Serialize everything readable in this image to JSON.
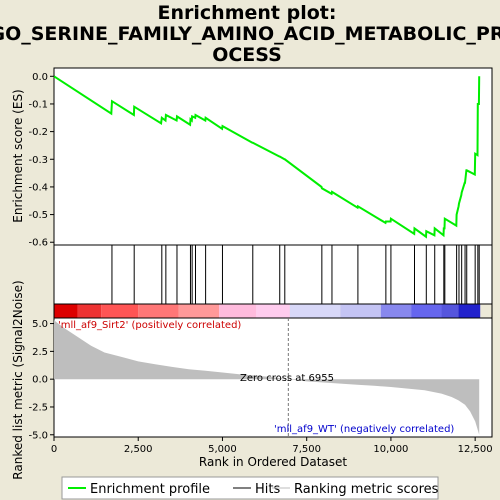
{
  "chart_data": {
    "type": "line",
    "title_lines": [
      "Enrichment plot:",
      "GO_SERINE_FAMILY_AMINO_ACID_METABOLIC_PR",
      "OCESS"
    ],
    "xlabel": "Rank in Ordered Dataset",
    "ylabel_top": "Enrichment score (ES)",
    "ylabel_bottom": "Ranked list metric (Signal2Noise)",
    "xlim": [
      0,
      13000
    ],
    "es_ylim": [
      -0.61,
      0.03
    ],
    "metric_ylim": [
      -5.2,
      5.5
    ],
    "x_ticks": [
      0,
      2500,
      5000,
      7500,
      10000,
      12500
    ],
    "x_tick_labels": [
      "0",
      "2,500",
      "5,000",
      "7,500",
      "10,000",
      "12,500"
    ],
    "es_ticks": [
      0.0,
      -0.1,
      -0.2,
      -0.3,
      -0.4,
      -0.5,
      -0.6
    ],
    "es_tick_labels": [
      "0.0",
      "-0.1",
      "-0.2",
      "-0.3",
      "-0.4",
      "-0.5",
      "-0.6"
    ],
    "metric_ticks": [
      5.0,
      2.5,
      0.0,
      -2.5,
      -5.0
    ],
    "metric_tick_labels": [
      "5.0",
      "2.5",
      "0.0",
      "-2.5",
      "-5.0"
    ],
    "hits": [
      1720,
      2380,
      3200,
      3320,
      3650,
      4050,
      4100,
      4200,
      4500,
      5000,
      5900,
      6700,
      6850,
      7950,
      8250,
      9020,
      9850,
      10000,
      10700,
      11050,
      11300,
      11570,
      11600,
      11950,
      12020,
      12100,
      12200,
      12250,
      12500,
      12580,
      12620
    ],
    "es_curve": [
      [
        0,
        0.0
      ],
      [
        1700,
        -0.135
      ],
      [
        1720,
        -0.09
      ],
      [
        2370,
        -0.14
      ],
      [
        2380,
        -0.11
      ],
      [
        3180,
        -0.17
      ],
      [
        3200,
        -0.15
      ],
      [
        3310,
        -0.16
      ],
      [
        3320,
        -0.14
      ],
      [
        3640,
        -0.16
      ],
      [
        3650,
        -0.145
      ],
      [
        4040,
        -0.175
      ],
      [
        4050,
        -0.155
      ],
      [
        4090,
        -0.16
      ],
      [
        4100,
        -0.145
      ],
      [
        4190,
        -0.15
      ],
      [
        4200,
        -0.14
      ],
      [
        4490,
        -0.16
      ],
      [
        4500,
        -0.15
      ],
      [
        4990,
        -0.19
      ],
      [
        5000,
        -0.18
      ],
      [
        5890,
        -0.24
      ],
      [
        5900,
        -0.24
      ],
      [
        6690,
        -0.29
      ],
      [
        6700,
        -0.29
      ],
      [
        6840,
        -0.3
      ],
      [
        6850,
        -0.3
      ],
      [
        7940,
        -0.4
      ],
      [
        7950,
        -0.405
      ],
      [
        8240,
        -0.425
      ],
      [
        8250,
        -0.418
      ],
      [
        9010,
        -0.475
      ],
      [
        9020,
        -0.47
      ],
      [
        9840,
        -0.53
      ],
      [
        9850,
        -0.525
      ],
      [
        9990,
        -0.525
      ],
      [
        10000,
        -0.515
      ],
      [
        10690,
        -0.57
      ],
      [
        10700,
        -0.55
      ],
      [
        11040,
        -0.58
      ],
      [
        11050,
        -0.56
      ],
      [
        11290,
        -0.575
      ],
      [
        11300,
        -0.55
      ],
      [
        11560,
        -0.575
      ],
      [
        11570,
        -0.55
      ],
      [
        11590,
        -0.55
      ],
      [
        11600,
        -0.515
      ],
      [
        11940,
        -0.54
      ],
      [
        11950,
        -0.5
      ],
      [
        12010,
        -0.47
      ],
      [
        12020,
        -0.46
      ],
      [
        12090,
        -0.43
      ],
      [
        12100,
        -0.42
      ],
      [
        12190,
        -0.385
      ],
      [
        12200,
        -0.385
      ],
      [
        12240,
        -0.34
      ],
      [
        12250,
        -0.34
      ],
      [
        12490,
        -0.355
      ],
      [
        12500,
        -0.28
      ],
      [
        12570,
        -0.285
      ],
      [
        12580,
        -0.1
      ],
      [
        12610,
        -0.1
      ],
      [
        12620,
        0.0
      ]
    ],
    "metric_curve": [
      [
        0,
        5.3
      ],
      [
        300,
        4.6
      ],
      [
        700,
        3.8
      ],
      [
        1100,
        3.0
      ],
      [
        1500,
        2.4
      ],
      [
        2000,
        2.0
      ],
      [
        2500,
        1.6
      ],
      [
        3000,
        1.35
      ],
      [
        3500,
        1.1
      ],
      [
        4000,
        0.9
      ],
      [
        4500,
        0.75
      ],
      [
        5000,
        0.6
      ],
      [
        5500,
        0.45
      ],
      [
        6000,
        0.32
      ],
      [
        6500,
        0.18
      ],
      [
        6955,
        0.0
      ],
      [
        7500,
        -0.2
      ],
      [
        8000,
        -0.3
      ],
      [
        8500,
        -0.4
      ],
      [
        9000,
        -0.5
      ],
      [
        9500,
        -0.6
      ],
      [
        10000,
        -0.7
      ],
      [
        10500,
        -0.85
      ],
      [
        11000,
        -1.0
      ],
      [
        11500,
        -1.3
      ],
      [
        11800,
        -1.6
      ],
      [
        12000,
        -1.9
      ],
      [
        12200,
        -2.3
      ],
      [
        12350,
        -2.9
      ],
      [
        12500,
        -3.8
      ],
      [
        12620,
        -5.0
      ]
    ],
    "zero_cross": 6955,
    "zero_cross_label": "Zero cross at 6955",
    "pos_label": "'mll_af9_Sirt2' (positively correlated)",
    "neg_label": "'mll_af9_WT' (negatively correlated)",
    "legend": [
      "Enrichment profile",
      "Hits",
      "Ranking metric scores"
    ],
    "colors": {
      "background": "#ece9d8",
      "plot_bg": "#ffffff",
      "es_line": "#00ee00",
      "hit": "#000000",
      "metric_fill": "#bebebe",
      "pos_label": "#cc0000",
      "neg_label": "#0000cc",
      "zero_line": "#777777"
    },
    "heatmap_segments": [
      {
        "start": 0,
        "end": 700,
        "color": "#dd0000"
      },
      {
        "start": 700,
        "end": 1400,
        "color": "#ee3333"
      },
      {
        "start": 1400,
        "end": 2500,
        "color": "#ff5555"
      },
      {
        "start": 2500,
        "end": 3700,
        "color": "#ff7777"
      },
      {
        "start": 3700,
        "end": 4900,
        "color": "#ff9999"
      },
      {
        "start": 4900,
        "end": 6000,
        "color": "#ffbbdd"
      },
      {
        "start": 6000,
        "end": 7000,
        "color": "#ffccee"
      },
      {
        "start": 7000,
        "end": 8500,
        "color": "#d8d8f8"
      },
      {
        "start": 8500,
        "end": 9700,
        "color": "#c4c4f4"
      },
      {
        "start": 9700,
        "end": 10600,
        "color": "#8888ee"
      },
      {
        "start": 10600,
        "end": 11500,
        "color": "#6666ee"
      },
      {
        "start": 11500,
        "end": 12000,
        "color": "#5555dd"
      },
      {
        "start": 12000,
        "end": 12650,
        "color": "#2222cc"
      }
    ]
  }
}
